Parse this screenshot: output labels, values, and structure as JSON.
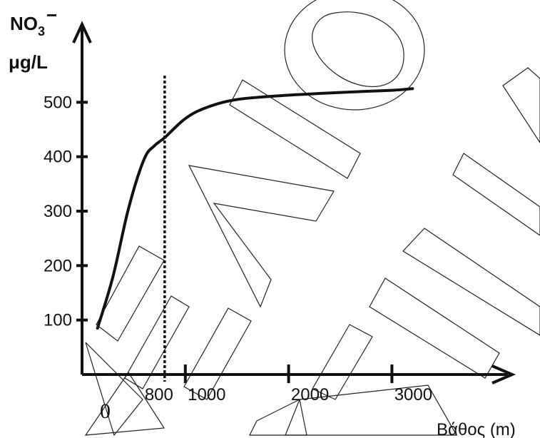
{
  "chart_data": {
    "type": "line",
    "y_axis": {
      "label_main": "NO",
      "label_sub": "3",
      "label_sup": "−",
      "label_unit": "μg/L",
      "ticks": [
        100,
        200,
        300,
        400,
        500
      ],
      "tick_labels": [
        "100",
        "200",
        "300",
        "400",
        "500"
      ],
      "range": [
        0,
        580
      ]
    },
    "x_axis": {
      "label": "Βάθος (m)",
      "origin_label": "0",
      "ticks": [
        800,
        1000,
        2000,
        3000
      ],
      "tick_labels": [
        "800",
        "1000",
        "2000",
        "3000"
      ],
      "range": [
        0,
        3900
      ]
    },
    "series": [
      {
        "x": [
          150,
          300,
          450,
          600,
          700,
          800,
          1000,
          1200,
          1500,
          2000,
          2500,
          3000,
          3200
        ],
        "y": [
          85,
          180,
          305,
          395,
          420,
          435,
          470,
          490,
          505,
          513,
          518,
          522,
          525
        ]
      }
    ],
    "reference_line": {
      "x": 800,
      "style": "dotted"
    },
    "grid": false,
    "legend": "none"
  },
  "colors": {
    "ink": "#111111",
    "background": "#ffffff",
    "watermark": "#222222"
  }
}
